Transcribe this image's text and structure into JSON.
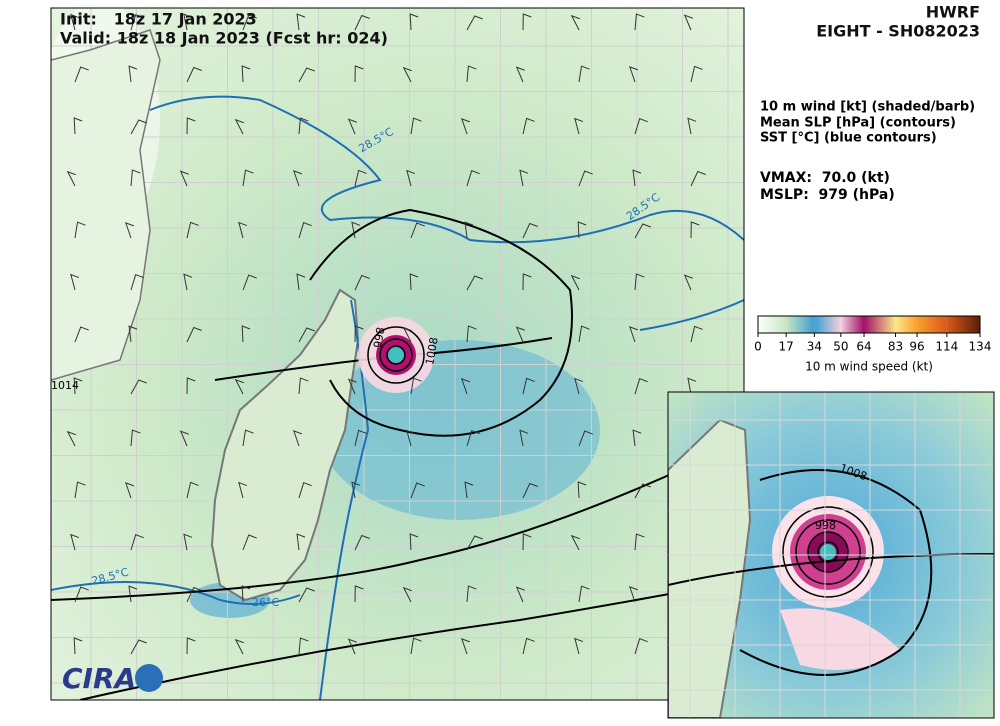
{
  "header": {
    "model": "HWRF",
    "storm": "EIGHT - SH082023",
    "init": "Init:   18z 17 Jan 2023",
    "valid": "Valid: 18z 18 Jan 2023 (Fcst hr: 024)"
  },
  "legend": {
    "lines": [
      "10 m wind [kt] (shaded/barb)",
      "Mean SLP [hPa] (contours)",
      "SST [°C] (blue contours)"
    ],
    "vmax": "VMAX:  70.0 (kt)",
    "mslp": "MSLP:  979 (hPa)"
  },
  "colorbar": {
    "lim": [
      0,
      134
    ],
    "ticks": [
      0,
      17,
      34,
      50,
      64,
      83,
      96,
      114,
      134
    ],
    "colors": [
      "#ffffff",
      "#c8e6c0",
      "#3c9fd0",
      "#f4d0dc",
      "#a0106a",
      "#fde68a",
      "#f9a030",
      "#d9581a",
      "#5a2008"
    ],
    "label": "10 m wind speed (kt)"
  },
  "map": {
    "contour_labels": [
      "1008",
      "998",
      "28.5°C",
      "28.5°C",
      "28.5°C",
      "26°C",
      "1014"
    ],
    "logo": "CIRA"
  },
  "inset": {
    "contour_labels": [
      "1008",
      "998"
    ]
  }
}
